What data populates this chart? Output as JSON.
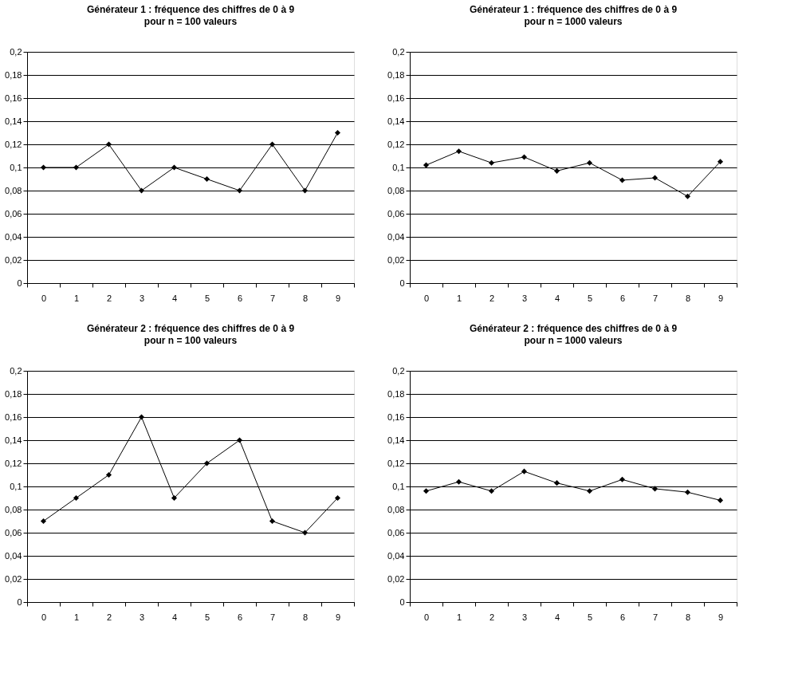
{
  "chart_data": [
    {
      "type": "line",
      "title": "Générateur 1 : fréquence des chiffres de 0 à 9",
      "subtitle": "pour n = 100 valeurs",
      "categories": [
        "0",
        "1",
        "2",
        "3",
        "4",
        "5",
        "6",
        "7",
        "8",
        "9"
      ],
      "series": [
        {
          "color": "#000000",
          "values": [
            0.1,
            0.1,
            0.12,
            0.08,
            0.1,
            0.09,
            0.08,
            0.12,
            0.08,
            0.13
          ]
        }
      ],
      "ylim": [
        0,
        0.2
      ],
      "yticks": [
        {
          "value": 0,
          "label": "0"
        },
        {
          "value": 0.02,
          "label": "0,02"
        },
        {
          "value": 0.04,
          "label": "0,04"
        },
        {
          "value": 0.06,
          "label": "0,06"
        },
        {
          "value": 0.08,
          "label": "0,08"
        },
        {
          "value": 0.1,
          "label": "0,1"
        },
        {
          "value": 0.12,
          "label": "0,12"
        },
        {
          "value": 0.14,
          "label": "0,14"
        },
        {
          "value": 0.16,
          "label": "0,16"
        },
        {
          "value": 0.18,
          "label": "0,18"
        },
        {
          "value": 0.2,
          "label": "0,2"
        }
      ],
      "grid": "y",
      "marker": "diamond",
      "line_style": "solid"
    },
    {
      "type": "line",
      "title": "Générateur 1 : fréquence des chiffres de 0 à 9",
      "subtitle": "pour n = 1000 valeurs",
      "categories": [
        "0",
        "1",
        "2",
        "3",
        "4",
        "5",
        "6",
        "7",
        "8",
        "9"
      ],
      "series": [
        {
          "color": "#000000",
          "values": [
            0.102,
            0.114,
            0.104,
            0.109,
            0.097,
            0.104,
            0.089,
            0.091,
            0.075,
            0.105
          ]
        }
      ],
      "ylim": [
        0,
        0.2
      ],
      "yticks": [
        {
          "value": 0,
          "label": "0"
        },
        {
          "value": 0.02,
          "label": "0,02"
        },
        {
          "value": 0.04,
          "label": "0,04"
        },
        {
          "value": 0.06,
          "label": "0,06"
        },
        {
          "value": 0.08,
          "label": "0,08"
        },
        {
          "value": 0.1,
          "label": "0,1"
        },
        {
          "value": 0.12,
          "label": "0,12"
        },
        {
          "value": 0.14,
          "label": "0,14"
        },
        {
          "value": 0.16,
          "label": "0,16"
        },
        {
          "value": 0.18,
          "label": "0,18"
        },
        {
          "value": 0.2,
          "label": "0,2"
        }
      ],
      "grid": "y",
      "marker": "diamond",
      "line_style": "solid"
    },
    {
      "type": "line",
      "title": "Générateur 2 : fréquence des chiffres de 0 à 9",
      "subtitle": "pour n = 100 valeurs",
      "categories": [
        "0",
        "1",
        "2",
        "3",
        "4",
        "5",
        "6",
        "7",
        "8",
        "9"
      ],
      "series": [
        {
          "color": "#000000",
          "values": [
            0.07,
            0.09,
            0.11,
            0.16,
            0.09,
            0.12,
            0.14,
            0.07,
            0.06,
            0.09
          ]
        }
      ],
      "ylim": [
        0,
        0.2
      ],
      "yticks": [
        {
          "value": 0,
          "label": "0"
        },
        {
          "value": 0.02,
          "label": "0,02"
        },
        {
          "value": 0.04,
          "label": "0,04"
        },
        {
          "value": 0.06,
          "label": "0,06"
        },
        {
          "value": 0.08,
          "label": "0,08"
        },
        {
          "value": 0.1,
          "label": "0,1"
        },
        {
          "value": 0.12,
          "label": "0,12"
        },
        {
          "value": 0.14,
          "label": "0,14"
        },
        {
          "value": 0.16,
          "label": "0,16"
        },
        {
          "value": 0.18,
          "label": "0,18"
        },
        {
          "value": 0.2,
          "label": "0,2"
        }
      ],
      "grid": "y",
      "marker": "diamond",
      "line_style": "solid"
    },
    {
      "type": "line",
      "title": "Générateur 2 : fréquence des chiffres de 0 à 9",
      "subtitle": "pour n = 1000 valeurs",
      "categories": [
        "0",
        "1",
        "2",
        "3",
        "4",
        "5",
        "6",
        "7",
        "8",
        "9"
      ],
      "series": [
        {
          "color": "#000000",
          "values": [
            0.096,
            0.104,
            0.096,
            0.113,
            0.103,
            0.096,
            0.106,
            0.098,
            0.095,
            0.088
          ]
        }
      ],
      "ylim": [
        0,
        0.2
      ],
      "yticks": [
        {
          "value": 0,
          "label": "0"
        },
        {
          "value": 0.02,
          "label": "0,02"
        },
        {
          "value": 0.04,
          "label": "0,04"
        },
        {
          "value": 0.06,
          "label": "0,06"
        },
        {
          "value": 0.08,
          "label": "0,08"
        },
        {
          "value": 0.1,
          "label": "0,1"
        },
        {
          "value": 0.12,
          "label": "0,12"
        },
        {
          "value": 0.14,
          "label": "0,14"
        },
        {
          "value": 0.16,
          "label": "0,16"
        },
        {
          "value": 0.18,
          "label": "0,18"
        },
        {
          "value": 0.2,
          "label": "0,2"
        }
      ],
      "grid": "y",
      "marker": "diamond",
      "line_style": "solid"
    }
  ]
}
